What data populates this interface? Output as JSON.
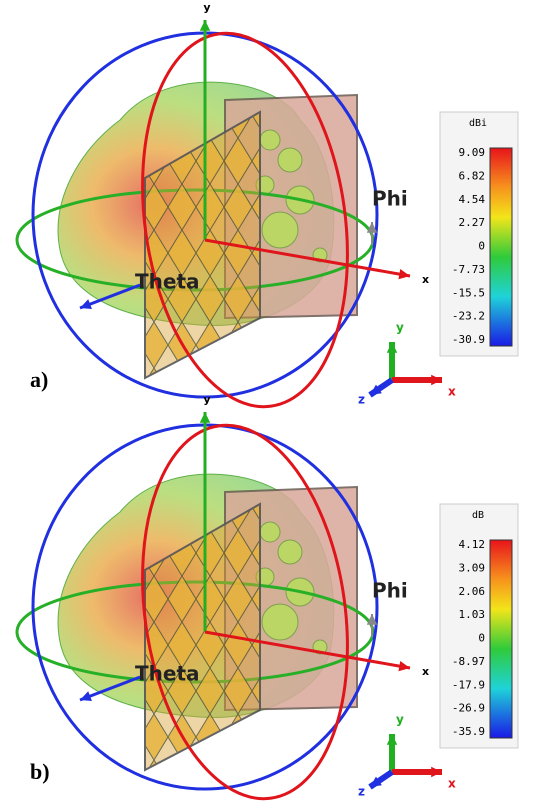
{
  "panels": [
    {
      "label": "a)",
      "axes": {
        "y": "y",
        "x": "x",
        "phi": "Phi",
        "theta": "Theta"
      },
      "triad": {
        "y": "y",
        "z": "z",
        "x": "x"
      },
      "colorbar": {
        "unit": "dBi",
        "ticks": [
          "9.09",
          "6.82",
          "4.54",
          "2.27",
          "0",
          "-7.73",
          "-15.5",
          "-23.2",
          "-30.9"
        ]
      }
    },
    {
      "label": "b)",
      "axes": {
        "y": "y",
        "x": "x",
        "phi": "Phi",
        "theta": "Theta"
      },
      "triad": {
        "y": "y",
        "z": "z",
        "x": "x"
      },
      "colorbar": {
        "unit": "dB",
        "ticks": [
          "4.12",
          "3.09",
          "2.06",
          "1.03",
          "0",
          "-8.97",
          "-17.9",
          "-26.9",
          "-35.9"
        ]
      }
    }
  ]
}
